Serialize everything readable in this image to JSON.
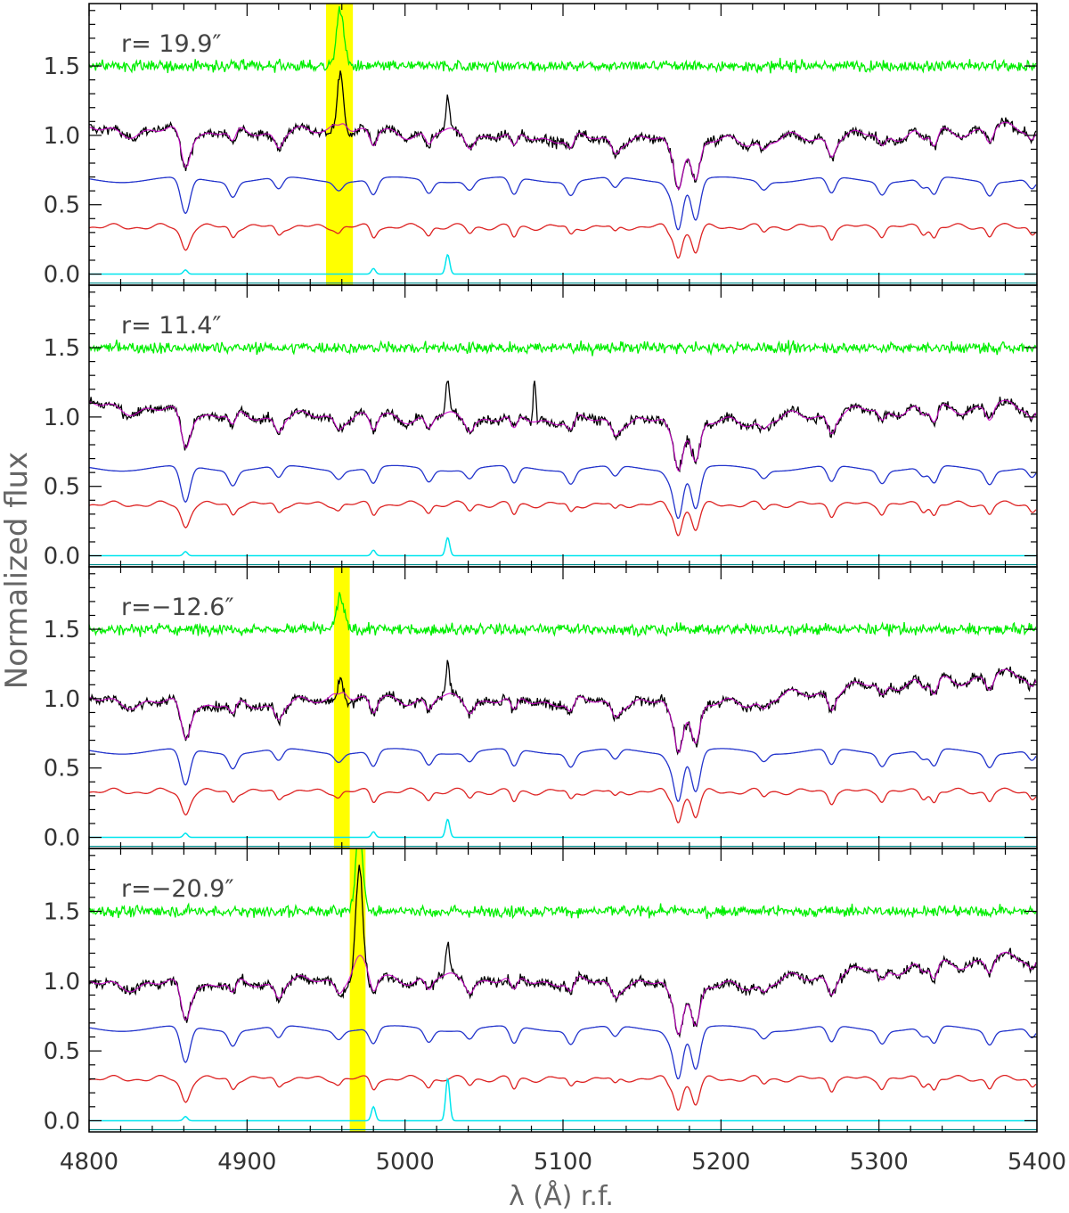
{
  "chart_data": {
    "type": "line",
    "xlabel": "λ (Å) r.f.",
    "ylabel": "Normalized flux",
    "xlim": [
      4800,
      5400
    ],
    "x_ticks": [
      "4800",
      "4900",
      "5000",
      "5100",
      "5200",
      "5300",
      "5400"
    ],
    "y_ticks": [
      "0.0",
      "0.5",
      "1.0",
      "1.5"
    ],
    "ylim": [
      -0.08,
      1.95
    ],
    "series_colors": {
      "residual": "#00ee00",
      "observed": "#000000",
      "model": "#cc00cc",
      "template_blue": "#2233cc",
      "template_red": "#dd2222",
      "emission": "#00e5ee",
      "highlight": "#ffff00",
      "baseline": "#008b8b"
    },
    "absorption_lines": [
      4861,
      4891,
      4920,
      4958,
      4980,
      5015,
      5041,
      5069,
      5105,
      5133,
      5167,
      5173,
      5184,
      5227,
      5270,
      5302,
      5328,
      5335,
      5370,
      5397
    ],
    "panels": [
      {
        "label": "r= 19.9″",
        "highlight": [
          4950,
          4967
        ],
        "emission_peak_wavelength": 4959,
        "observed_peak": 1.52,
        "residual_peak": 1.92,
        "observed_continuum": [
          [
            4800,
            1.03
          ],
          [
            4900,
            1.02
          ],
          [
            5000,
            1.02
          ],
          [
            5100,
            0.98
          ],
          [
            5200,
            0.95
          ],
          [
            5300,
            1.0
          ],
          [
            5400,
            1.06
          ]
        ],
        "blue_template_level": 0.68,
        "red_template_level": 0.34,
        "emission_model_peaks": [
          [
            4861,
            0.03
          ],
          [
            4980,
            0.04
          ],
          [
            5027,
            0.14
          ]
        ]
      },
      {
        "label": "r= 11.4″",
        "highlight": null,
        "emission_peak_wavelength": null,
        "observed_peak": null,
        "residual_peak": null,
        "observed_continuum": [
          [
            4800,
            1.08
          ],
          [
            4900,
            1.0
          ],
          [
            5000,
            1.0
          ],
          [
            5100,
            0.98
          ],
          [
            5200,
            0.95
          ],
          [
            5300,
            1.05
          ],
          [
            5400,
            1.08
          ]
        ],
        "blue_template_level": 0.63,
        "red_template_level": 0.37,
        "emission_model_peaks": [
          [
            4861,
            0.03
          ],
          [
            4980,
            0.04
          ],
          [
            5027,
            0.13
          ]
        ]
      },
      {
        "label": "r=−12.6″",
        "highlight": [
          4955,
          4965
        ],
        "emission_peak_wavelength": 4959,
        "observed_peak": 1.22,
        "residual_peak": 1.74,
        "observed_continuum": [
          [
            4800,
            0.98
          ],
          [
            4900,
            0.95
          ],
          [
            5000,
            1.0
          ],
          [
            5100,
            0.98
          ],
          [
            5200,
            0.95
          ],
          [
            5300,
            1.1
          ],
          [
            5400,
            1.18
          ]
        ],
        "blue_template_level": 0.62,
        "red_template_level": 0.33,
        "emission_model_peaks": [
          [
            4861,
            0.03
          ],
          [
            4980,
            0.04
          ],
          [
            5027,
            0.13
          ]
        ]
      },
      {
        "label": "r=−20.9″",
        "highlight": [
          4965,
          4975
        ],
        "emission_peak_wavelength": 4971,
        "observed_peak": 1.79,
        "residual_peak": 2.1,
        "observed_continuum": [
          [
            4800,
            0.97
          ],
          [
            4900,
            0.98
          ],
          [
            5000,
            1.02
          ],
          [
            5100,
            1.0
          ],
          [
            5200,
            0.95
          ],
          [
            5300,
            1.08
          ],
          [
            5400,
            1.18
          ]
        ],
        "blue_template_level": 0.66,
        "red_template_level": 0.3,
        "emission_model_peaks": [
          [
            4861,
            0.03
          ],
          [
            4980,
            0.1
          ],
          [
            5027,
            0.3
          ]
        ]
      }
    ]
  }
}
